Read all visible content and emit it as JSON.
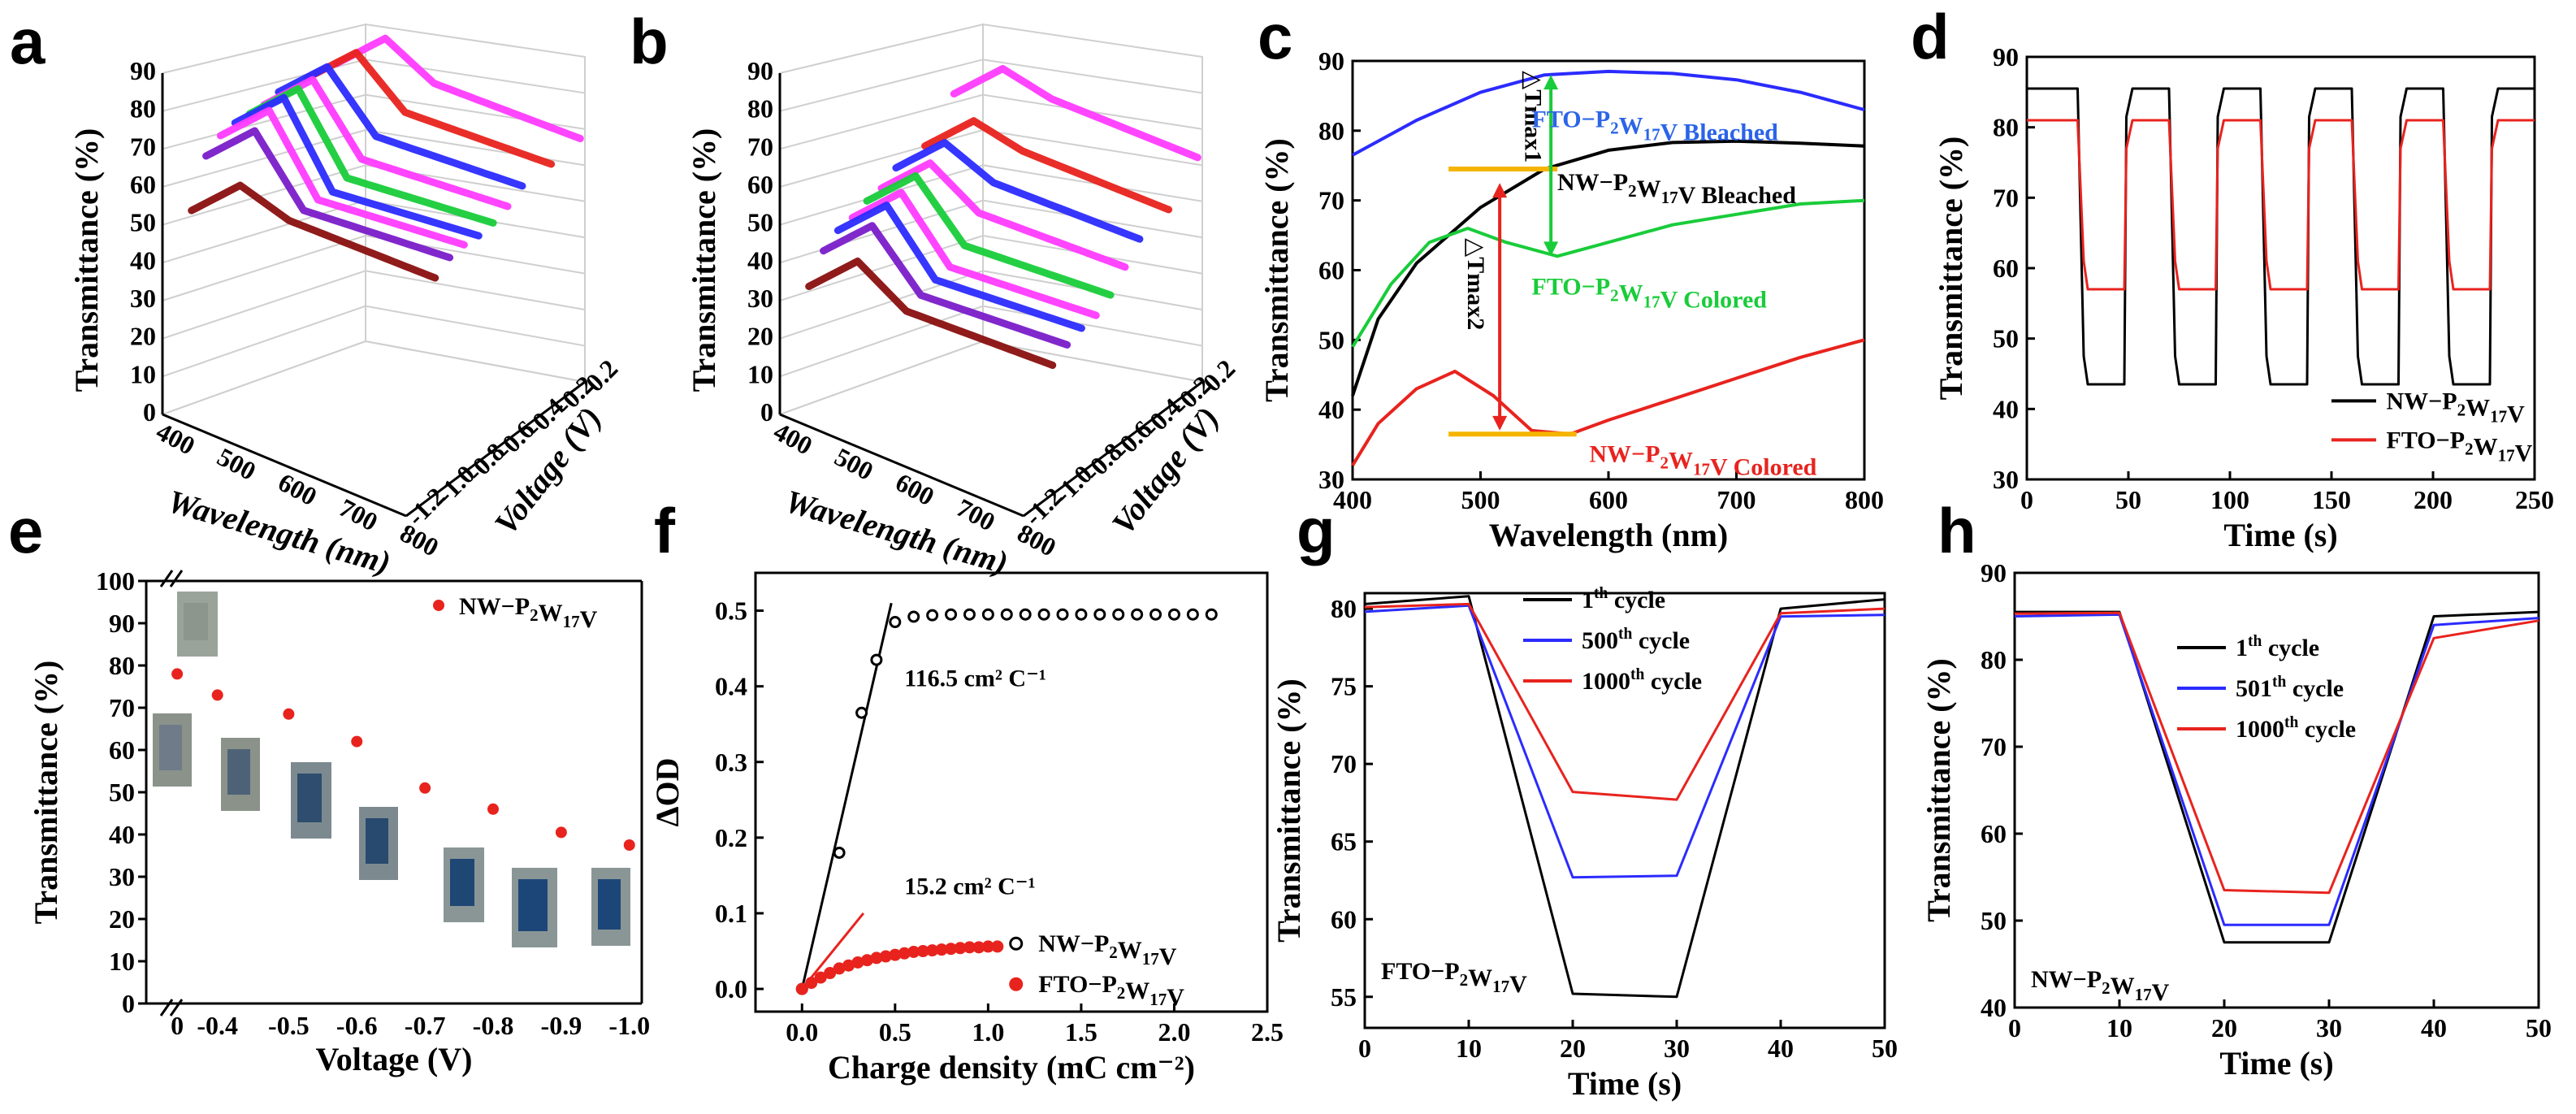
{
  "panels": [
    {
      "id": "a",
      "letter": "a"
    },
    {
      "id": "b",
      "letter": "b"
    },
    {
      "id": "c",
      "letter": "c"
    },
    {
      "id": "d",
      "letter": "d"
    },
    {
      "id": "e",
      "letter": "e"
    },
    {
      "id": "f",
      "letter": "f"
    },
    {
      "id": "g",
      "letter": "g"
    },
    {
      "id": "h",
      "letter": "h"
    }
  ],
  "colors": {
    "black": "#000000",
    "red": "#e8231e",
    "blue": "#2b2bff",
    "green": "#19cc3a",
    "magenta": "#ff3bff",
    "violet": "#7a1cc9",
    "darkred": "#8a0f0f",
    "orange": "#f5b400"
  },
  "chart_data": [
    {
      "id": "a",
      "type": "line",
      "projection": "3d",
      "ylabel": "Transmittance (%)",
      "xlabel": "Wavelength (nm)",
      "zlabel": "Voltage (V)",
      "z_ticks": [
        "90",
        "80",
        "70",
        "60",
        "50",
        "40",
        "30",
        "20",
        "10",
        "0"
      ],
      "x_ticks": [
        "400",
        "500",
        "600",
        "700",
        "800"
      ],
      "v_ticks": [
        "0.2",
        "-0.2",
        "-0.4",
        "-0.6",
        "-0.8",
        "-1.0",
        "-1.2"
      ],
      "series": [
        {
          "color": "#8a0f0f",
          "voltage": -1.0,
          "peak": 63,
          "tail": 60
        },
        {
          "color": "#7a1cc9",
          "voltage": -0.9,
          "peak": 76,
          "tail": 64
        },
        {
          "color": "#ff3bff",
          "voltage": -0.8,
          "peak": 80,
          "tail": 66
        },
        {
          "color": "#2b2bff",
          "voltage": -0.7,
          "peak": 82,
          "tail": 67
        },
        {
          "color": "#19cc3a",
          "voltage": -0.6,
          "peak": 83,
          "tail": 69
        },
        {
          "color": "#ff3bff",
          "voltage": -0.5,
          "peak": 84,
          "tail": 72
        },
        {
          "color": "#2b2bff",
          "voltage": -0.4,
          "peak": 86,
          "tail": 76
        },
        {
          "color": "#e8231e",
          "voltage": -0.2,
          "peak": 87,
          "tail": 79
        },
        {
          "color": "#ff3bff",
          "voltage": 0.0,
          "peak": 88,
          "tail": 83
        }
      ]
    },
    {
      "id": "b",
      "type": "line",
      "projection": "3d",
      "ylabel": "Transmittance (%)",
      "xlabel": "Wavelength (nm)",
      "zlabel": "Voltage (V)",
      "z_ticks": [
        "90",
        "80",
        "70",
        "60",
        "50",
        "40",
        "30",
        "20",
        "10",
        "0"
      ],
      "x_ticks": [
        "400",
        "500",
        "600",
        "700",
        "800"
      ],
      "v_ticks": [
        "0.2",
        "-0.2",
        "-0.4",
        "-0.6",
        "-0.8",
        "-1.0",
        "-1.2"
      ],
      "series": [
        {
          "color": "#8a0f0f",
          "voltage": -1.0,
          "peak": 43,
          "tail": 37
        },
        {
          "color": "#7a1cc9",
          "voltage": -0.9,
          "peak": 51,
          "tail": 41
        },
        {
          "color": "#2b2bff",
          "voltage": -0.8,
          "peak": 55,
          "tail": 44
        },
        {
          "color": "#ff3bff",
          "voltage": -0.7,
          "peak": 57,
          "tail": 46
        },
        {
          "color": "#19cc3a",
          "voltage": -0.6,
          "peak": 60,
          "tail": 50
        },
        {
          "color": "#ff3bff",
          "voltage": -0.5,
          "peak": 62,
          "tail": 56
        },
        {
          "color": "#2b2bff",
          "voltage": -0.4,
          "peak": 66,
          "tail": 62
        },
        {
          "color": "#e8231e",
          "voltage": -0.2,
          "peak": 69,
          "tail": 67
        },
        {
          "color": "#ff3bff",
          "voltage": 0.0,
          "peak": 80,
          "tail": 78
        }
      ]
    },
    {
      "id": "c",
      "type": "line",
      "xlabel": "Wavelength (nm)",
      "ylabel": "Transmittance (%)",
      "xlim": [
        400,
        800
      ],
      "ylim": [
        30,
        90
      ],
      "x_ticks": [
        400,
        500,
        600,
        700,
        800
      ],
      "y_ticks": [
        30,
        40,
        50,
        60,
        70,
        80,
        90
      ],
      "series": [
        {
          "name": "FTO−P2W17V Bleached",
          "color": "#2b2bff",
          "x": [
            400,
            450,
            500,
            550,
            600,
            650,
            700,
            750,
            800
          ],
          "y": [
            76.5,
            81.5,
            85.5,
            88,
            88.5,
            88.2,
            87.3,
            85.5,
            83
          ]
        },
        {
          "name": "NW−P2W17V Bleached",
          "color": "#000000",
          "x": [
            400,
            420,
            450,
            500,
            550,
            600,
            650,
            700,
            750,
            800
          ],
          "y": [
            42,
            53,
            61,
            69,
            74.5,
            77.2,
            78.3,
            78.5,
            78.2,
            77.8
          ]
        },
        {
          "name": "FTO−P2W17V Colored",
          "color": "#19cc3a",
          "x": [
            400,
            430,
            460,
            490,
            520,
            560,
            600,
            650,
            700,
            750,
            800
          ],
          "y": [
            49,
            58,
            64,
            66,
            64,
            62,
            64,
            66.5,
            68,
            69.5,
            70
          ]
        },
        {
          "name": "NW−P2W17V Colored",
          "color": "#e8231e",
          "x": [
            400,
            420,
            450,
            480,
            510,
            540,
            570,
            600,
            650,
            700,
            750,
            800
          ],
          "y": [
            32,
            38,
            43,
            45.5,
            42,
            37,
            36.5,
            38.5,
            41.5,
            44.5,
            47.5,
            50
          ]
        }
      ],
      "annotations": {
        "tmax1": "△Tmax1",
        "tmax2": "△Tmax2"
      }
    },
    {
      "id": "d",
      "type": "line",
      "xlabel": "Time (s)",
      "ylabel": "Transmittance (%)",
      "xlim": [
        0,
        250
      ],
      "ylim": [
        30,
        90
      ],
      "x_ticks": [
        0,
        50,
        100,
        150,
        200,
        250
      ],
      "y_ticks": [
        30,
        40,
        50,
        60,
        70,
        80,
        90
      ],
      "series": [
        {
          "name": "NW−P2W17V",
          "color": "#000000",
          "high": 85.5,
          "low": 43.5
        },
        {
          "name": "FTO−P2W17V",
          "color": "#e8231e",
          "high": 81,
          "low": 57
        }
      ],
      "switch_intervals": [
        [
          25,
          48
        ],
        [
          70,
          93
        ],
        [
          115,
          138
        ],
        [
          160,
          183
        ],
        [
          205,
          228
        ]
      ]
    },
    {
      "id": "e",
      "type": "scatter",
      "xlabel": "Voltage (V)",
      "ylabel": "Transmittance (%)",
      "ylim": [
        0,
        100
      ],
      "y_ticks": [
        0,
        10,
        20,
        30,
        40,
        50,
        60,
        70,
        80,
        90,
        100
      ],
      "categories": [
        "0",
        "-0.4",
        "-0.5",
        "-0.6",
        "-0.7",
        "-0.8",
        "-0.9",
        "-1.0"
      ],
      "series": [
        {
          "name": "NW−P2W17V",
          "color": "#e8231e",
          "values": [
            78,
            73,
            68.5,
            62,
            51,
            46,
            40.5,
            37.5
          ]
        }
      ]
    },
    {
      "id": "f",
      "type": "scatter",
      "xlabel": "Charge density (mC cm⁻²)",
      "ylabel": "ΔOD",
      "xlim": [
        -0.25,
        2.5
      ],
      "ylim": [
        -0.03,
        0.55
      ],
      "x_ticks": [
        0.0,
        0.5,
        1.0,
        1.5,
        2.0,
        2.5
      ],
      "y_ticks": [
        0.0,
        0.1,
        0.2,
        0.3,
        0.4,
        0.5
      ],
      "series": [
        {
          "name": "NW−P2W17V",
          "color": "#000000",
          "x": [
            0,
            0.2,
            0.32,
            0.4,
            0.5,
            0.6,
            0.7,
            0.8,
            0.9,
            1.0,
            1.1,
            1.2,
            1.3,
            1.4,
            1.5,
            1.6,
            1.7,
            1.8,
            1.9,
            2.0,
            2.1,
            2.2
          ],
          "y": [
            0,
            0.18,
            0.365,
            0.435,
            0.485,
            0.492,
            0.494,
            0.495,
            0.495,
            0.495,
            0.495,
            0.495,
            0.495,
            0.495,
            0.495,
            0.495,
            0.495,
            0.495,
            0.495,
            0.495,
            0.495,
            0.495
          ]
        },
        {
          "name": "FTO−P2W17V",
          "color": "#e8231e",
          "x": [
            0,
            0.05,
            0.1,
            0.15,
            0.2,
            0.25,
            0.3,
            0.35,
            0.4,
            0.45,
            0.5,
            0.55,
            0.6,
            0.65,
            0.7,
            0.75,
            0.8,
            0.85,
            0.9,
            0.95,
            1.0,
            1.05
          ],
          "y": [
            0,
            0.008,
            0.015,
            0.021,
            0.027,
            0.031,
            0.035,
            0.038,
            0.041,
            0.043,
            0.045,
            0.047,
            0.049,
            0.05,
            0.051,
            0.052,
            0.053,
            0.054,
            0.055,
            0.055,
            0.056,
            0.056
          ]
        }
      ],
      "fits": [
        {
          "label": "116.5 cm² C⁻¹",
          "slope": 1.05
        },
        {
          "label": "15.2 cm² C⁻¹",
          "slope": 0.3
        }
      ]
    },
    {
      "id": "g",
      "type": "line",
      "xlabel": "Time (s)",
      "ylabel": "Transmittance (%)",
      "xlim": [
        0,
        50
      ],
      "ylim": [
        53,
        81
      ],
      "x_ticks": [
        0,
        10,
        20,
        30,
        40,
        50
      ],
      "y_ticks": [
        55,
        60,
        65,
        70,
        75,
        80
      ],
      "sample_label": "FTO−P2W17V",
      "series": [
        {
          "name": "1th cycle",
          "color": "#000000",
          "x": [
            0,
            10,
            20,
            30,
            40,
            50
          ],
          "y": [
            80.3,
            80.8,
            55.2,
            55,
            80,
            80.6
          ]
        },
        {
          "name": "500th cycle",
          "color": "#2b2bff",
          "x": [
            0,
            10,
            20,
            30,
            40,
            50
          ],
          "y": [
            79.8,
            80.2,
            62.7,
            62.8,
            79.5,
            79.6
          ]
        },
        {
          "name": "1000th cycle",
          "color": "#e8231e",
          "x": [
            0,
            10,
            20,
            30,
            40,
            50
          ],
          "y": [
            80.1,
            80.3,
            68.2,
            67.7,
            79.7,
            80
          ]
        }
      ]
    },
    {
      "id": "h",
      "type": "line",
      "xlabel": "Time (s)",
      "ylabel": "Transmittance (%)",
      "xlim": [
        0,
        50
      ],
      "ylim": [
        40,
        90
      ],
      "x_ticks": [
        0,
        10,
        20,
        30,
        40,
        50
      ],
      "y_ticks": [
        40,
        50,
        60,
        70,
        80,
        90
      ],
      "sample_label": "NW−P2W17V",
      "series": [
        {
          "name": "1th cycle",
          "color": "#000000",
          "x": [
            0,
            10,
            20,
            30,
            40,
            50
          ],
          "y": [
            85.5,
            85.5,
            47.5,
            47.5,
            85,
            85.5
          ]
        },
        {
          "name": "501th cycle",
          "color": "#2b2bff",
          "x": [
            0,
            10,
            20,
            30,
            40,
            50
          ],
          "y": [
            85,
            85.2,
            49.5,
            49.5,
            84,
            84.8
          ]
        },
        {
          "name": "1000th cycle",
          "color": "#e8231e",
          "x": [
            0,
            10,
            20,
            30,
            40,
            50
          ],
          "y": [
            85.3,
            85.4,
            53.5,
            53.2,
            82.5,
            84.5
          ]
        }
      ]
    }
  ]
}
